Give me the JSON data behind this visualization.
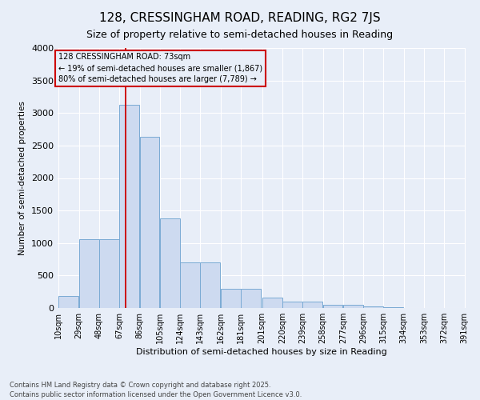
{
  "title": "128, CRESSINGHAM ROAD, READING, RG2 7JS",
  "subtitle": "Size of property relative to semi-detached houses in Reading",
  "xlabel": "Distribution of semi-detached houses by size in Reading",
  "ylabel": "Number of semi-detached properties",
  "property_size": 73,
  "property_label": "128 CRESSINGHAM ROAD: 73sqm",
  "pct_smaller": 19,
  "pct_larger": 80,
  "count_smaller": 1867,
  "count_larger": 7789,
  "bins": [
    10,
    29,
    48,
    67,
    86,
    105,
    124,
    143,
    162,
    181,
    201,
    220,
    239,
    258,
    277,
    296,
    315,
    334,
    353,
    372,
    391
  ],
  "counts": [
    190,
    1060,
    1060,
    3130,
    2630,
    1380,
    700,
    700,
    290,
    290,
    165,
    95,
    95,
    55,
    50,
    25,
    10,
    5,
    3,
    3
  ],
  "bar_facecolor": "#cddaf0",
  "bar_edgecolor": "#7aaad4",
  "line_color": "#cc0000",
  "annotation_box_edgecolor": "#cc0000",
  "background_color": "#e8eef8",
  "grid_color": "#ffffff",
  "footer_text": "Contains HM Land Registry data © Crown copyright and database right 2025.\nContains public sector information licensed under the Open Government Licence v3.0.",
  "ylim": [
    0,
    4000
  ],
  "yticks": [
    0,
    500,
    1000,
    1500,
    2000,
    2500,
    3000,
    3500,
    4000
  ],
  "title_fontsize": 11,
  "subtitle_fontsize": 9,
  "ylabel_fontsize": 7.5,
  "xlabel_fontsize": 8,
  "tick_fontsize": 7,
  "annotation_fontsize": 7,
  "footer_fontsize": 6
}
